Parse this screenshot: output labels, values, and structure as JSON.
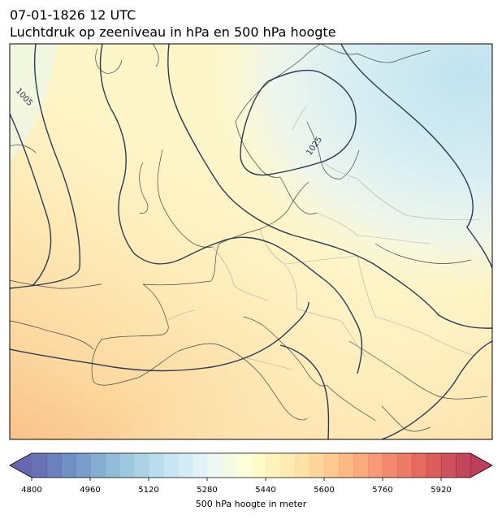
{
  "title_line1": "07-01-1826 12 UTC",
  "title_line2": "Luchtdruk op zeeniveau in hPa en 500 hPa hoogte",
  "contour_labels": [
    "1005",
    "1025"
  ],
  "colorbar": {
    "label": "500 hPa hoogte in meter",
    "min": 4800,
    "max": 6000,
    "step": 40,
    "ticks": [
      "4800",
      "4960",
      "5120",
      "5280",
      "5440",
      "5600",
      "5760",
      "5920"
    ],
    "extend": "both",
    "colormap": "RdYlBu_r"
  },
  "colors": {
    "pressure_contour": "#2b3a55",
    "coastline": "#444444",
    "borders": "#aaaaaa",
    "frame": "#000000"
  }
}
